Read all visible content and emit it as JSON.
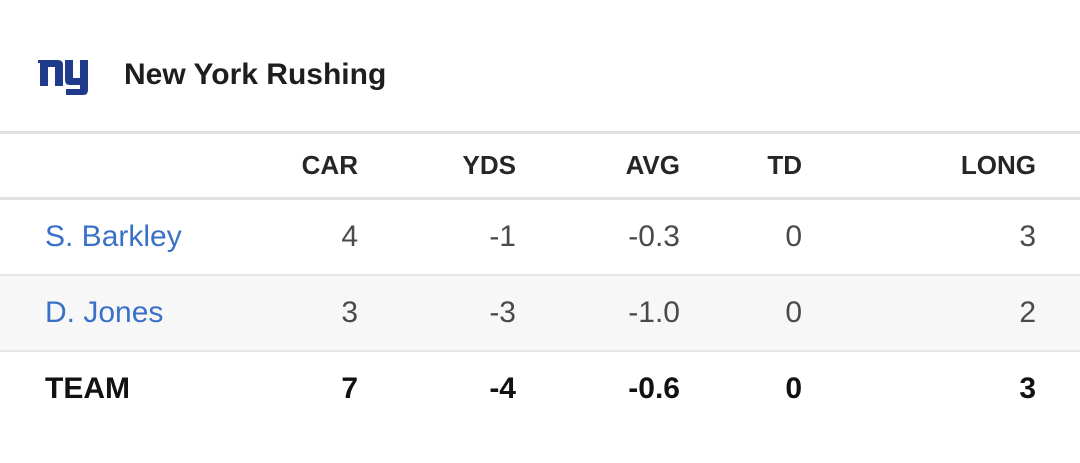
{
  "header": {
    "logo_text": "ny",
    "logo_icon": "giants-ny-logo-icon",
    "title": "New York Rushing",
    "brand_color": "#1f3a8a"
  },
  "columns": {
    "player": "",
    "car": "CAR",
    "yds": "YDS",
    "avg": "AVG",
    "td": "TD",
    "long": "LONG"
  },
  "players": [
    {
      "name": "S. Barkley",
      "car": "4",
      "yds": "-1",
      "avg": "-0.3",
      "td": "0",
      "long": "3"
    },
    {
      "name": "D. Jones",
      "car": "3",
      "yds": "-3",
      "avg": "-1.0",
      "td": "0",
      "long": "2"
    }
  ],
  "team": {
    "label": "TEAM",
    "car": "7",
    "yds": "-4",
    "avg": "-0.6",
    "td": "0",
    "long": "3"
  },
  "colors": {
    "link": "#3a71c8",
    "alt_row_bg": "#f7f7f7",
    "divider": "#e2e2e2"
  }
}
